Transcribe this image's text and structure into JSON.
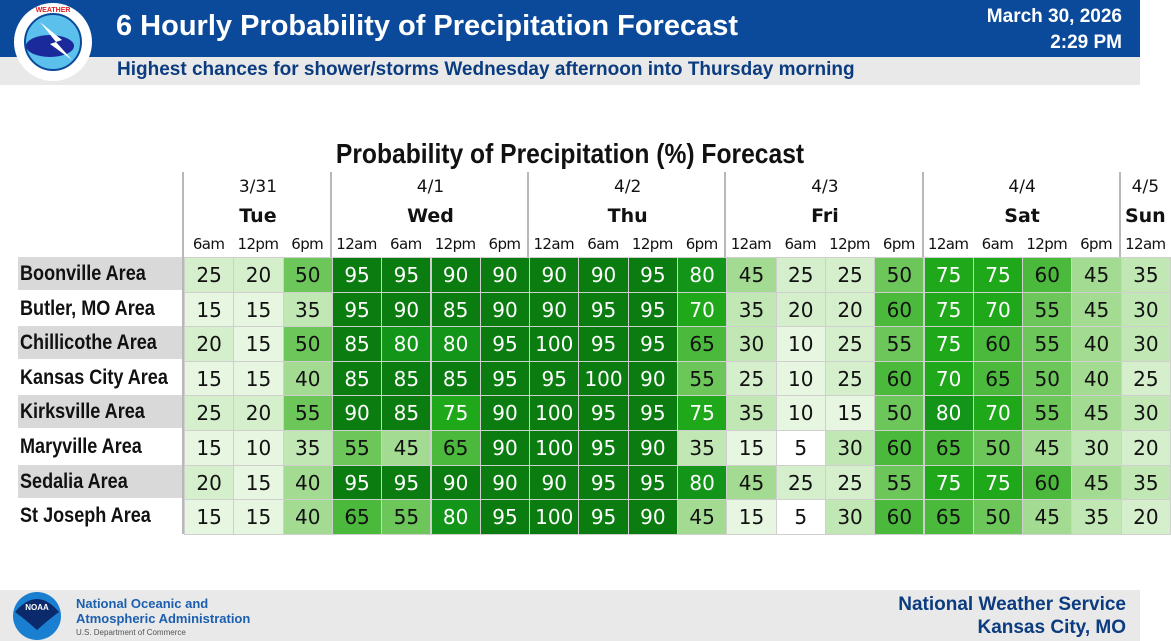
{
  "header": {
    "title": "6 Hourly Probability of Precipitation Forecast",
    "date": "March 30, 2026",
    "time": "2:29 PM",
    "subtitle": "Highest chances for shower/storms Wednesday afternoon into Thursday morning",
    "logo_text": "NATIONAL WEATHER SERVICE"
  },
  "footer": {
    "noaa_logo_text": "NOAA",
    "noaa_line1": "National Oceanic and",
    "noaa_line2": "Atmospheric Administration",
    "noaa_line3": "U.S. Department of Commerce",
    "nws_line1": "National Weather Service",
    "nws_line2": "Kansas City, MO"
  },
  "colors": {
    "header_bg": "#0b4a9b",
    "subtitle_text": "#0b3c80",
    "scale": [
      "#ffffff",
      "#e6f6e0",
      "#d5efcc",
      "#c1e7b5",
      "#a4db92",
      "#6cc65a",
      "#4bba3c",
      "#20a81b",
      "#13951a",
      "#0b7d10"
    ]
  },
  "chart_data": {
    "type": "table",
    "title": "Probability of Precipitation (%) Forecast",
    "days": [
      {
        "date": "3/31",
        "day": "Tue",
        "span": 3
      },
      {
        "date": "4/1",
        "day": "Wed",
        "span": 4
      },
      {
        "date": "4/2",
        "day": "Thu",
        "span": 4
      },
      {
        "date": "4/3",
        "day": "Fri",
        "span": 4
      },
      {
        "date": "4/4",
        "day": "Sat",
        "span": 4
      },
      {
        "date": "4/5",
        "day": "Sun",
        "span": 1
      }
    ],
    "times": [
      "6am",
      "12pm",
      "6pm",
      "12am",
      "6am",
      "12pm",
      "6pm",
      "12am",
      "6am",
      "12pm",
      "6pm",
      "12am",
      "6am",
      "12pm",
      "6pm",
      "12am",
      "6am",
      "12pm",
      "6pm",
      "12am"
    ],
    "rows": [
      {
        "name": "Boonville Area",
        "values": [
          25,
          20,
          50,
          95,
          95,
          90,
          90,
          90,
          90,
          95,
          80,
          45,
          25,
          25,
          50,
          75,
          75,
          60,
          45,
          35
        ]
      },
      {
        "name": "Butler, MO Area",
        "values": [
          15,
          15,
          35,
          95,
          90,
          85,
          90,
          90,
          95,
          95,
          70,
          35,
          20,
          20,
          60,
          75,
          70,
          55,
          45,
          30
        ]
      },
      {
        "name": "Chillicothe Area",
        "values": [
          20,
          15,
          50,
          85,
          80,
          80,
          95,
          100,
          95,
          95,
          65,
          30,
          10,
          25,
          55,
          75,
          60,
          55,
          40,
          30
        ]
      },
      {
        "name": "Kansas City Area",
        "values": [
          15,
          15,
          40,
          85,
          85,
          85,
          95,
          95,
          100,
          90,
          55,
          25,
          10,
          25,
          60,
          70,
          65,
          50,
          40,
          25
        ]
      },
      {
        "name": "Kirksville Area",
        "values": [
          25,
          20,
          55,
          90,
          85,
          75,
          90,
          100,
          95,
          95,
          75,
          35,
          10,
          15,
          50,
          80,
          70,
          55,
          45,
          30
        ]
      },
      {
        "name": "Maryville Area",
        "values": [
          15,
          10,
          35,
          55,
          45,
          65,
          90,
          100,
          95,
          90,
          35,
          15,
          5,
          30,
          60,
          65,
          50,
          45,
          30,
          20
        ]
      },
      {
        "name": "Sedalia Area",
        "values": [
          20,
          15,
          40,
          95,
          95,
          90,
          90,
          90,
          95,
          95,
          80,
          45,
          25,
          25,
          55,
          75,
          75,
          60,
          45,
          35
        ]
      },
      {
        "name": "St Joseph Area",
        "values": [
          15,
          15,
          40,
          65,
          55,
          80,
          95,
          100,
          95,
          90,
          45,
          15,
          5,
          30,
          60,
          65,
          50,
          45,
          35,
          20
        ]
      }
    ]
  }
}
